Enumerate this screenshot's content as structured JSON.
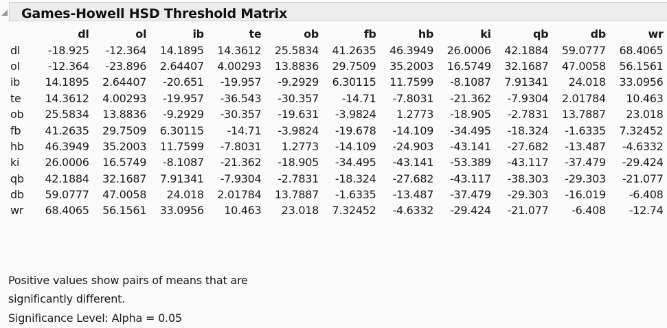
{
  "title": "Games-Howell HSD Threshold Matrix",
  "columns": [
    "dl",
    "ol",
    "ib",
    "te",
    "ob",
    "fb",
    "hb",
    "ki",
    "qb",
    "db",
    "wr"
  ],
  "rows": [
    {
      "label": "dl",
      "values": [
        "-18.925",
        "-12.364",
        "14.1895",
        "14.3612",
        "25.5834",
        "41.2635",
        "46.3949",
        "26.0006",
        "42.1884",
        "59.0777",
        "68.4065"
      ]
    },
    {
      "label": "ol",
      "values": [
        "-12.364",
        "-23.896",
        "2.64407",
        "4.00293",
        "13.8836",
        "29.7509",
        "35.2003",
        "16.5749",
        "32.1687",
        "47.0058",
        "56.1561"
      ]
    },
    {
      "label": "ib",
      "values": [
        "14.1895",
        "2.64407",
        "-20.651",
        "-19.957",
        "-9.2929",
        "6.30115",
        "11.7599",
        "-8.1087",
        "7.91341",
        "24.018",
        "33.0956"
      ]
    },
    {
      "label": "te",
      "values": [
        "14.3612",
        "4.00293",
        "-19.957",
        "-36.543",
        "-30.357",
        "-14.71",
        "-7.8031",
        "-21.362",
        "-7.9304",
        "2.01784",
        "10.463"
      ]
    },
    {
      "label": "ob",
      "values": [
        "25.5834",
        "13.8836",
        "-9.2929",
        "-30.357",
        "-19.631",
        "-3.9824",
        "1.2773",
        "-18.905",
        "-2.7831",
        "13.7887",
        "23.018"
      ]
    },
    {
      "label": "fb",
      "values": [
        "41.2635",
        "29.7509",
        "6.30115",
        "-14.71",
        "-3.9824",
        "-19.678",
        "-14.109",
        "-34.495",
        "-18.324",
        "-1.6335",
        "7.32452"
      ]
    },
    {
      "label": "hb",
      "values": [
        "46.3949",
        "35.2003",
        "11.7599",
        "-7.8031",
        "1.2773",
        "-14.109",
        "-24.903",
        "-43.141",
        "-27.682",
        "-13.487",
        "-4.6332"
      ]
    },
    {
      "label": "ki",
      "values": [
        "26.0006",
        "16.5749",
        "-8.1087",
        "-21.362",
        "-18.905",
        "-34.495",
        "-43.141",
        "-53.389",
        "-43.117",
        "-37.479",
        "-29.424"
      ]
    },
    {
      "label": "qb",
      "values": [
        "42.1884",
        "32.1687",
        "7.91341",
        "-7.9304",
        "-2.7831",
        "-18.324",
        "-27.682",
        "-43.117",
        "-38.303",
        "-29.303",
        "-21.077"
      ]
    },
    {
      "label": "db",
      "values": [
        "59.0777",
        "47.0058",
        "24.018",
        "2.01784",
        "13.7887",
        "-1.6335",
        "-13.487",
        "-37.479",
        "-29.303",
        "-16.019",
        "-6.408"
      ]
    },
    {
      "label": "wr",
      "values": [
        "68.4065",
        "56.1561",
        "33.0956",
        "10.463",
        "23.018",
        "7.32452",
        "-4.6332",
        "-29.424",
        "-21.077",
        "-6.408",
        "-12.74"
      ]
    }
  ],
  "footer": {
    "line1": "Positive values show pairs of means that are",
    "line2": "significantly different.",
    "line3": "Significance Level: Alpha = 0.05"
  }
}
